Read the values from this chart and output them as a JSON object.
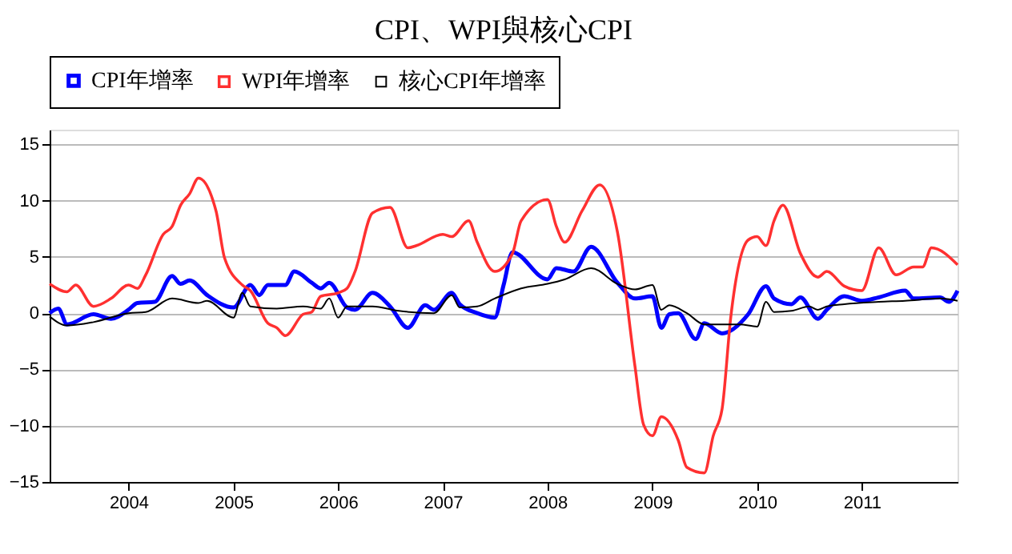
{
  "chart_data": {
    "type": "line",
    "title": "CPI、WPI與核心CPI",
    "xlim": [
      "2003-04",
      "2011-12"
    ],
    "xticks": [
      "2004",
      "2005",
      "2006",
      "2007",
      "2008",
      "2009",
      "2010",
      "2011"
    ],
    "ylim": [
      -15,
      16.3
    ],
    "yticks": [
      -15,
      -10,
      -5,
      0,
      5,
      10,
      15
    ],
    "grid": "y",
    "legend": "top left",
    "line_style": "solid",
    "marker": "none",
    "series": [
      {
        "name": "CPI年增率",
        "color": "#0000ff",
        "x": [
          "2003-04",
          "2003-05",
          "2003-06",
          "2003-09",
          "2003-11",
          "2004-01",
          "2004-02",
          "2004-04",
          "2004-06",
          "2004-07",
          "2004-08",
          "2004-10",
          "2005-01",
          "2005-03",
          "2005-04",
          "2005-05",
          "2005-07",
          "2005-08",
          "2005-10",
          "2005-11",
          "2005-12",
          "2006-02",
          "2006-03",
          "2006-05",
          "2006-07",
          "2006-09",
          "2006-11",
          "2006-12",
          "2007-02",
          "2007-03",
          "2007-05",
          "2007-07",
          "2007-08",
          "2007-09",
          "2008-01",
          "2008-02",
          "2008-04",
          "2008-06",
          "2008-09",
          "2008-11",
          "2009-01",
          "2009-02",
          "2009-03",
          "2009-04",
          "2009-06",
          "2009-07",
          "2009-09",
          "2009-12",
          "2010-02",
          "2010-03",
          "2010-05",
          "2010-06",
          "2010-08",
          "2010-09",
          "2010-11",
          "2011-01",
          "2011-03",
          "2011-06",
          "2011-07",
          "2011-10",
          "2011-11",
          "2011-12"
        ],
        "values": [
          0,
          0.4,
          -1.0,
          -0.1,
          -0.5,
          0.3,
          0.9,
          1.0,
          3.3,
          2.6,
          2.9,
          1.6,
          0.5,
          2.5,
          1.6,
          2.5,
          2.5,
          3.7,
          2.7,
          2.2,
          2.7,
          0.5,
          0.3,
          1.8,
          0.6,
          -1.3,
          0.7,
          0.3,
          1.8,
          0.8,
          0,
          -0.4,
          2.5,
          5.4,
          3.0,
          4.0,
          3.7,
          5.9,
          2.7,
          1.3,
          1.5,
          -1.3,
          -0.1,
          0,
          -2.3,
          -0.9,
          -1.8,
          -0.1,
          2.4,
          1.3,
          0.8,
          1.4,
          -0.5,
          0.3,
          1.5,
          1.1,
          1.4,
          2.0,
          1.3,
          1.4,
          1.0,
          2.0
        ]
      },
      {
        "name": "WPI年增率",
        "color": "#ff3030",
        "x": [
          "2003-04",
          "2003-06",
          "2003-07",
          "2003-09",
          "2003-11",
          "2004-01",
          "2004-02",
          "2004-03",
          "2004-05",
          "2004-06",
          "2004-07",
          "2004-08",
          "2004-09",
          "2004-11",
          "2004-12",
          "2005-02",
          "2005-03",
          "2005-05",
          "2005-06",
          "2005-07",
          "2005-09",
          "2005-10",
          "2005-11",
          "2006-01",
          "2006-02",
          "2006-03",
          "2006-05",
          "2006-07",
          "2006-09",
          "2006-10",
          "2007-01",
          "2007-02",
          "2007-04",
          "2007-05",
          "2007-07",
          "2007-09",
          "2007-10",
          "2008-01",
          "2008-02",
          "2008-03",
          "2008-05",
          "2008-07",
          "2008-09",
          "2008-11",
          "2008-12",
          "2009-01",
          "2009-02",
          "2009-04",
          "2009-05",
          "2009-07",
          "2009-08",
          "2009-09",
          "2009-10",
          "2009-12",
          "2010-01",
          "2010-02",
          "2010-03",
          "2010-04",
          "2010-06",
          "2010-08",
          "2010-09",
          "2010-11",
          "2011-01",
          "2011-03",
          "2011-05",
          "2011-07",
          "2011-08",
          "2011-09",
          "2011-12"
        ],
        "values": [
          2.6,
          1.9,
          2.5,
          0.6,
          1.3,
          2.5,
          2.2,
          3.4,
          7.0,
          7.7,
          9.6,
          10.6,
          12.0,
          9.1,
          4.9,
          2.5,
          2.0,
          -0.9,
          -1.3,
          -2.0,
          -0.1,
          0.1,
          1.5,
          1.8,
          2.2,
          3.7,
          8.9,
          9.4,
          5.8,
          6.0,
          7.0,
          6.8,
          8.2,
          6.3,
          3.7,
          5.3,
          8.2,
          10.1,
          7.7,
          6.3,
          9.1,
          11.4,
          7.2,
          -4.7,
          -9.9,
          -10.9,
          -9.2,
          -11.3,
          -13.7,
          -14.2,
          -10.9,
          -8.5,
          -0.4,
          6.5,
          6.8,
          6.0,
          8.2,
          9.6,
          5.3,
          3.2,
          3.7,
          2.4,
          2.0,
          5.8,
          3.4,
          4.1,
          4.1,
          5.8,
          4.3
        ]
      },
      {
        "name": "核心CPI年增率",
        "color": "#000000",
        "x": [
          "2003-04",
          "2003-06",
          "2003-09",
          "2004-01",
          "2004-03",
          "2004-06",
          "2004-09",
          "2004-10",
          "2005-01",
          "2005-02",
          "2005-03",
          "2005-06",
          "2005-09",
          "2005-11",
          "2005-12",
          "2006-01",
          "2006-02",
          "2006-05",
          "2006-08",
          "2006-12",
          "2007-02",
          "2007-03",
          "2007-05",
          "2007-07",
          "2007-10",
          "2008-01",
          "2008-03",
          "2008-06",
          "2008-09",
          "2008-11",
          "2009-01",
          "2009-02",
          "2009-03",
          "2009-05",
          "2009-07",
          "2009-09",
          "2009-11",
          "2010-01",
          "2010-02",
          "2010-03",
          "2010-05",
          "2010-07",
          "2010-08",
          "2010-09",
          "2010-11",
          "2011-03",
          "2011-06",
          "2011-10",
          "2011-12"
        ],
        "values": [
          -0.3,
          -1.1,
          -0.8,
          0,
          0.1,
          1.3,
          0.9,
          1.1,
          -0.4,
          1.8,
          0.6,
          0.4,
          0.6,
          0.4,
          1.3,
          -0.4,
          0.6,
          0.6,
          0.2,
          0,
          1.6,
          0.5,
          0.6,
          1.3,
          2.2,
          2.6,
          3.0,
          4.0,
          2.6,
          2.1,
          2.5,
          0.3,
          0.7,
          0,
          -1.0,
          -1.0,
          -1.0,
          -1.2,
          1.0,
          0.1,
          0.2,
          0.6,
          0.3,
          0.6,
          0.8,
          1.0,
          1.1,
          1.3,
          1.1
        ]
      }
    ]
  }
}
